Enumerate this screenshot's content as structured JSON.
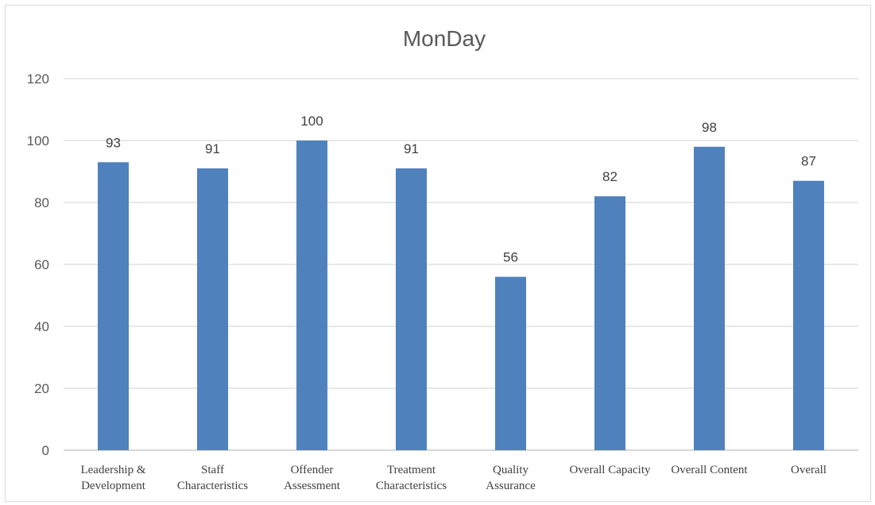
{
  "chart_data": {
    "type": "bar",
    "title": "MonDay",
    "xlabel": "",
    "ylabel": "",
    "categories": [
      [
        "Leadership &",
        "Development"
      ],
      [
        "Staff",
        "Characteristics"
      ],
      [
        "Offender",
        "Assessment"
      ],
      [
        "Treatment",
        "Characteristics"
      ],
      [
        "Quality",
        "Assurance"
      ],
      [
        "Overall Capacity"
      ],
      [
        "Overall Content"
      ],
      [
        "Overall"
      ]
    ],
    "values": [
      93,
      91,
      100,
      91,
      56,
      82,
      98,
      87
    ],
    "ylim": [
      0,
      120
    ],
    "yticks": [
      0,
      20,
      40,
      60,
      80,
      100,
      120
    ],
    "grid": true,
    "legend": "none",
    "data_labels": true,
    "colors": {
      "bar": "#4f81bd",
      "grid": "#d9d9d9",
      "axis": "#bfbfbf"
    }
  }
}
